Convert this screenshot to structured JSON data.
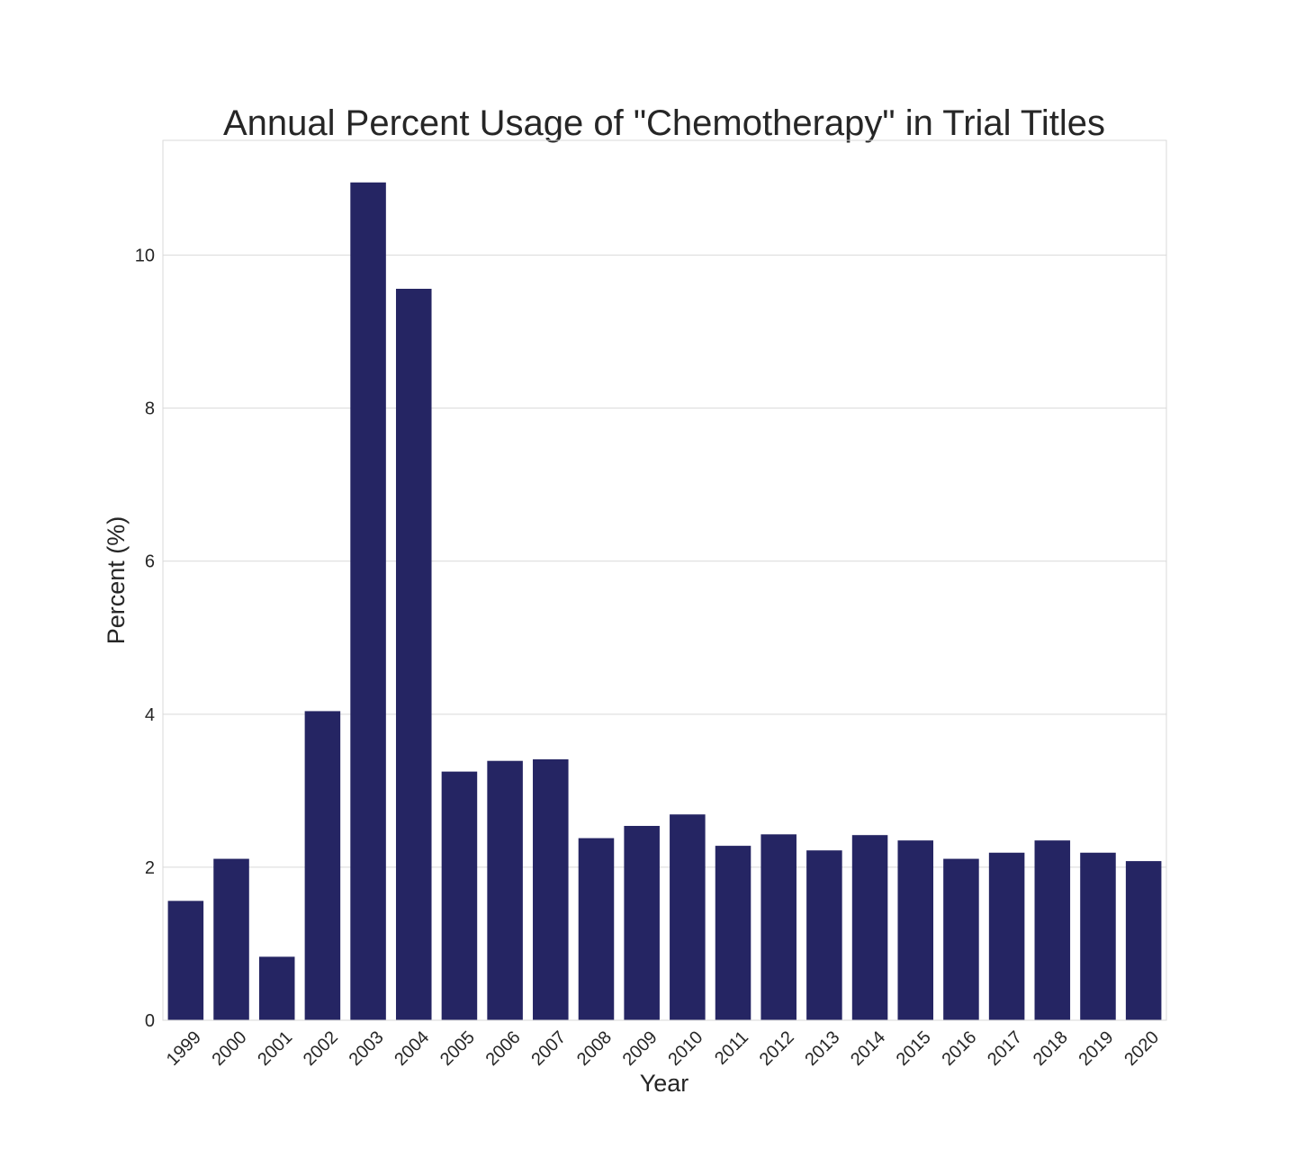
{
  "chart_data": {
    "type": "bar",
    "title": "Annual Percent Usage of \"Chemotherapy\" in Trial Titles",
    "xlabel": "Year",
    "ylabel": "Percent (%)",
    "categories": [
      "1999",
      "2000",
      "2001",
      "2002",
      "2003",
      "2004",
      "2005",
      "2006",
      "2007",
      "2008",
      "2009",
      "2010",
      "2011",
      "2012",
      "2013",
      "2014",
      "2015",
      "2016",
      "2017",
      "2018",
      "2019",
      "2020"
    ],
    "values": [
      1.56,
      2.11,
      0.83,
      4.04,
      10.95,
      9.56,
      3.25,
      3.39,
      3.41,
      2.38,
      2.54,
      2.69,
      2.28,
      2.43,
      2.22,
      2.42,
      2.35,
      2.11,
      2.19,
      2.35,
      2.19,
      2.08
    ],
    "ylim": [
      0,
      11.5
    ],
    "yticks": [
      "0",
      "2",
      "4",
      "6",
      "8",
      "10"
    ],
    "ytick_values": [
      0,
      2,
      4,
      6,
      8,
      10
    ],
    "grid": true,
    "colors": {
      "bar": "#252563",
      "grid": "#d9d9d9",
      "frame": "#d9d9d9",
      "text": "#262626"
    }
  }
}
